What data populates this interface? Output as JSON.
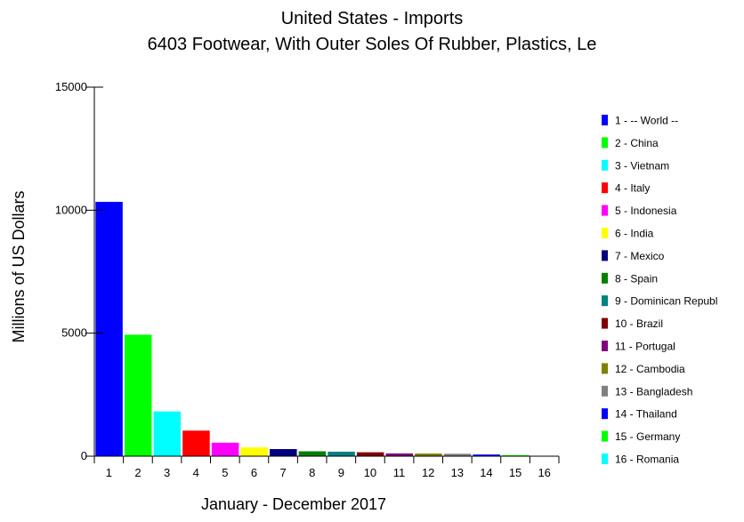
{
  "chart_data": {
    "type": "bar",
    "title": "United States - Imports",
    "subtitle": "6403 Footwear, With Outer Soles Of Rubber, Plastics, Le",
    "xlabel": "January - December  2017",
    "ylabel": "Millions of US Dollars",
    "ylim": [
      0,
      15000
    ],
    "yticks": [
      "0",
      "5000",
      "10000",
      "15000"
    ],
    "grid": false,
    "legend_position": "right",
    "categories": [
      "1",
      "2",
      "3",
      "4",
      "5",
      "6",
      "7",
      "8",
      "9",
      "10",
      "11",
      "12",
      "13",
      "14",
      "15",
      "16"
    ],
    "values": [
      10350,
      4950,
      1830,
      1050,
      560,
      370,
      300,
      210,
      195,
      170,
      125,
      120,
      110,
      80,
      55,
      20
    ],
    "colors": [
      "#0000ff",
      "#00ff00",
      "#00ffff",
      "#ff0000",
      "#ff00ff",
      "#ffff00",
      "#000080",
      "#008000",
      "#008080",
      "#800000",
      "#800080",
      "#808000",
      "#808080",
      "#0000ff",
      "#00ff00",
      "#00ffff"
    ],
    "legend": [
      "1 - -- World --",
      "2 - China",
      "3 - Vietnam",
      "4 - Italy",
      "5 - Indonesia",
      "6 - India",
      "7 - Mexico",
      "8 - Spain",
      "9 - Dominican Republ",
      "10 - Brazil",
      "11 - Portugal",
      "12 - Cambodia",
      "13 - Bangladesh",
      "14 - Thailand",
      "15 - Germany",
      "16 - Romania"
    ]
  }
}
